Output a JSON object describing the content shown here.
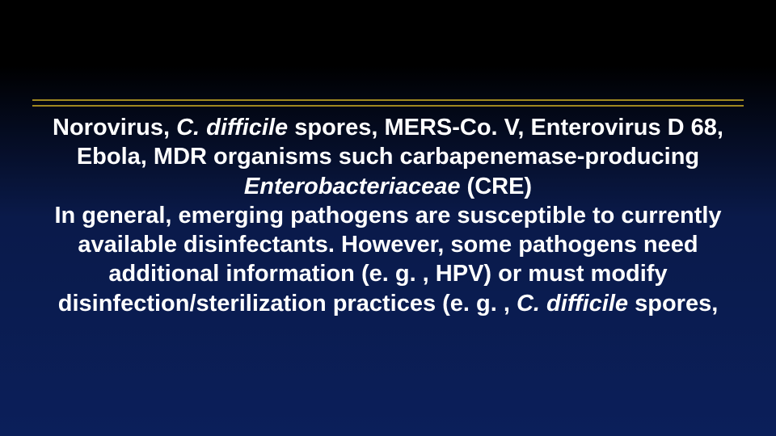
{
  "slide": {
    "background_gradient": [
      "#000000",
      "#0a1a4a",
      "#0b1f5a"
    ],
    "divider_color": "#a08820",
    "text_color": "#ffffff",
    "font_family": "Arial",
    "font_size_pt": 22,
    "font_weight": "bold",
    "heading": {
      "seg1": "Norovirus, ",
      "seg2_italic": "C. difficile",
      "seg3": " spores, MERS-Co. V, Enterovirus D 68, Ebola, MDR organisms such carbapenemase-producing ",
      "seg4_italic": "Enterobacteriaceae",
      "seg5": "  (CRE)"
    },
    "body": {
      "seg1": "In general, emerging pathogens are susceptible to currently available disinfectants. However, some pathogens need additional information (e. g. ,  HPV) or must modify disinfection/sterilization practices (e. g. , ",
      "seg2_italic": "C. difficile",
      "seg3": " spores,"
    }
  }
}
